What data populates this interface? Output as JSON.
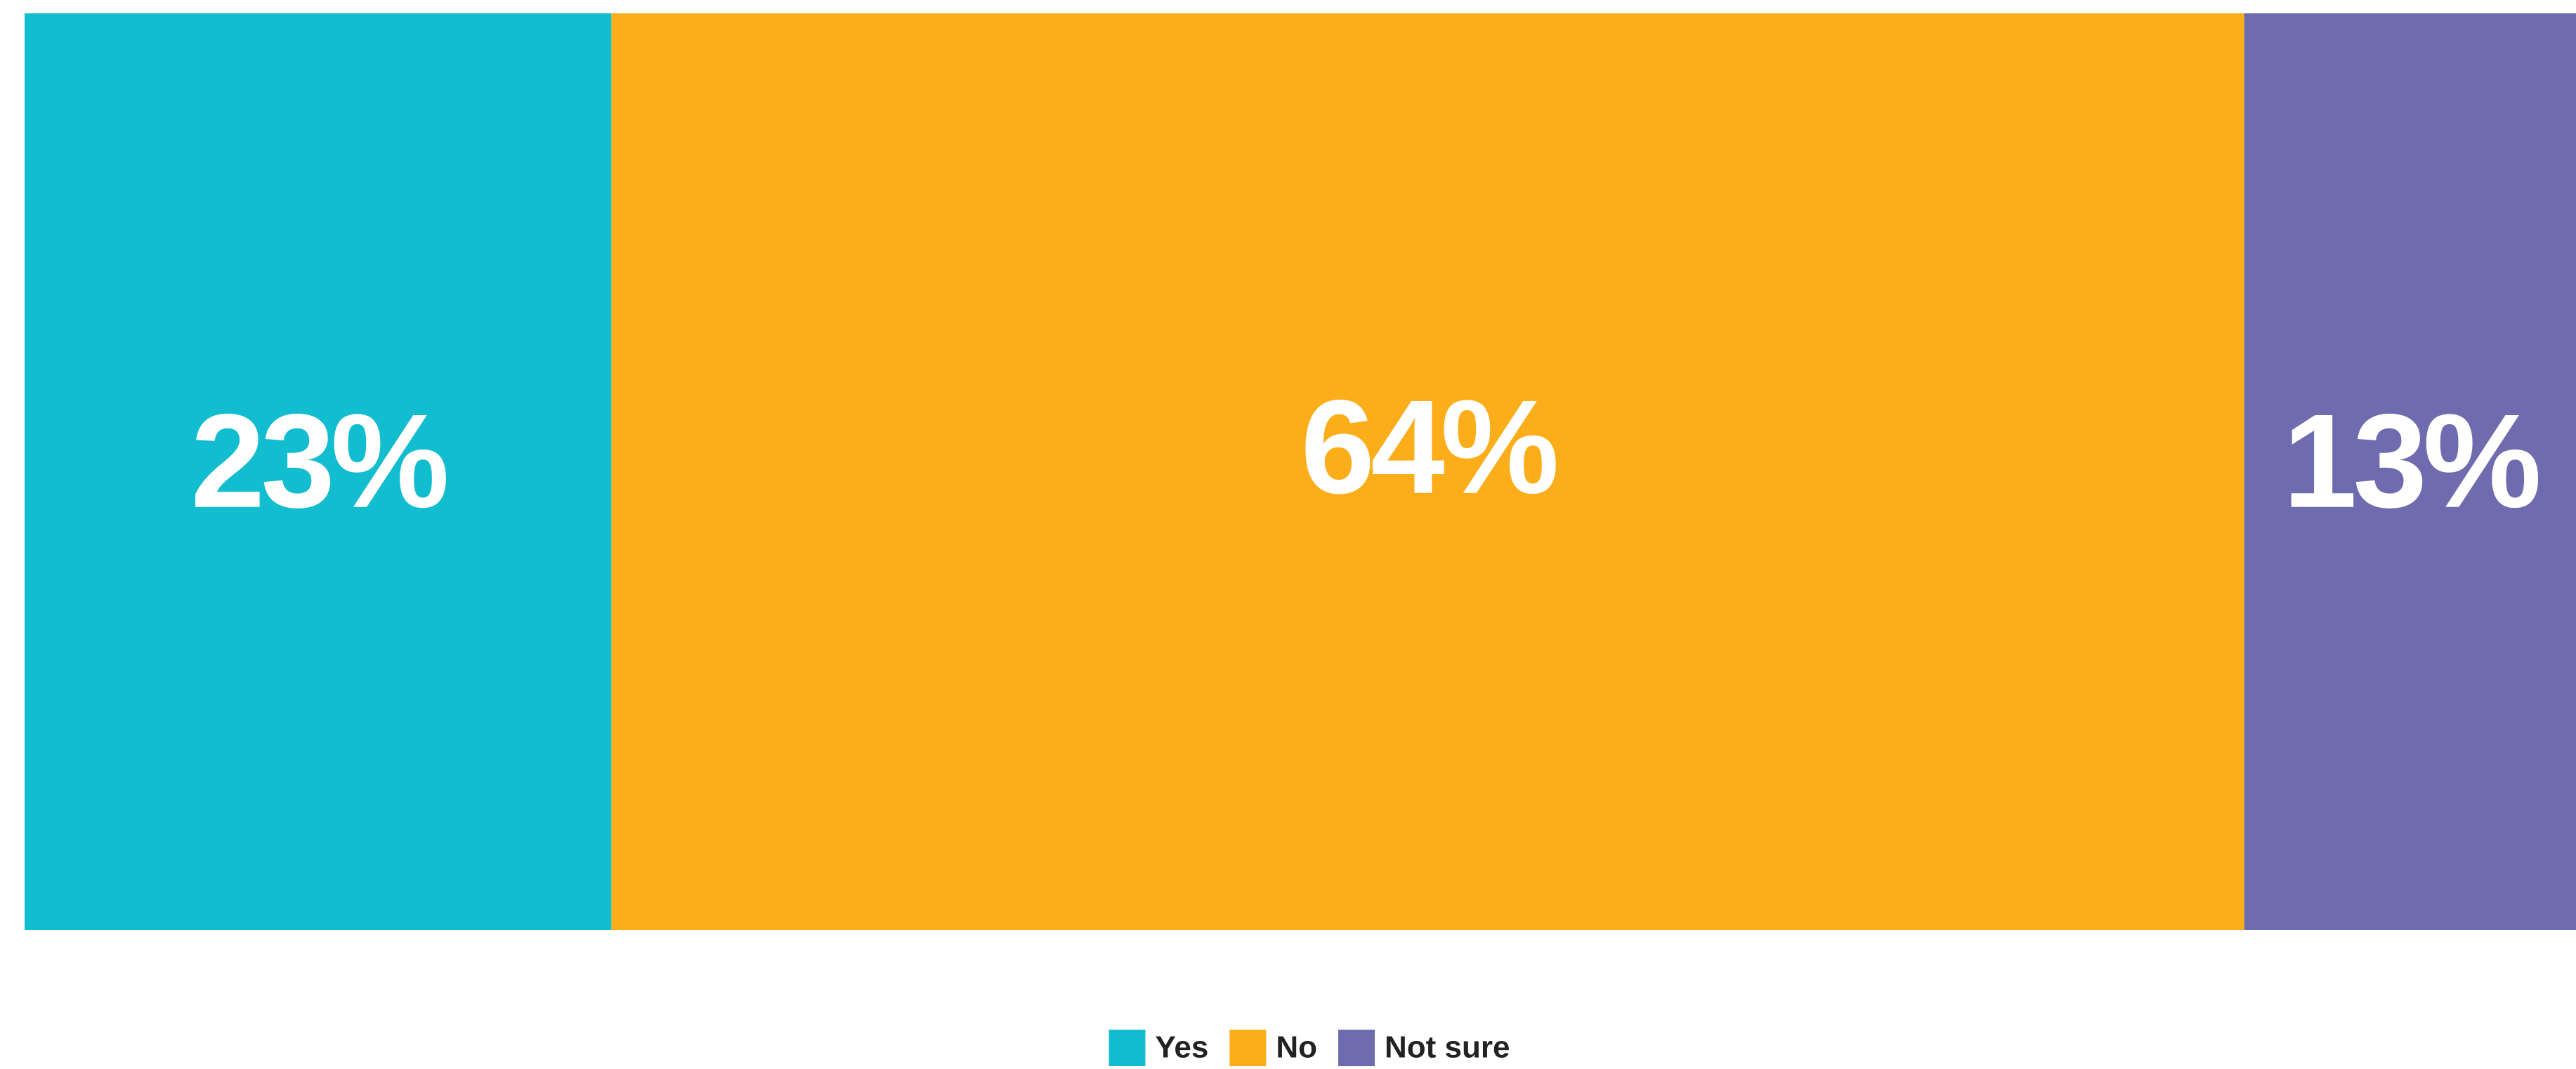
{
  "chart_data": {
    "type": "bar",
    "orientation": "horizontal",
    "stacked": true,
    "categories": [
      null
    ],
    "xlim": [
      0,
      100
    ],
    "legend": "bottom",
    "series": [
      {
        "name": "Yes",
        "color": "#12bdd0",
        "values": [
          23
        ],
        "value_labels": [
          "23%"
        ]
      },
      {
        "name": "No",
        "color": "#fcae1a",
        "values": [
          64
        ],
        "value_labels": [
          "64%"
        ]
      },
      {
        "name": "Not sure",
        "color": "#6e6caf",
        "values": [
          13
        ],
        "value_labels": [
          "13%"
        ]
      }
    ]
  }
}
